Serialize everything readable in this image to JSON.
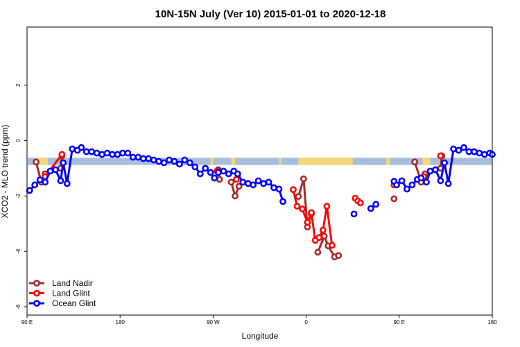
{
  "chart_data": {
    "type": "line",
    "title": "10N-15N July (Ver 10)   2015-01-01 to 2020-12-18",
    "xlabel": "Longitude",
    "ylabel": "XCO2 - MLO trend (ppm)",
    "xlim": [
      90,
      450
    ],
    "ylim": [
      -6.3,
      4.1
    ],
    "x_ticks": [
      {
        "value": 90,
        "label": "90 E"
      },
      {
        "value": 162,
        "label": "180"
      },
      {
        "value": 234,
        "label": "90 W"
      },
      {
        "value": 306,
        "label": "0"
      },
      {
        "value": 378,
        "label": "90 E"
      },
      {
        "value": 450,
        "label": "180"
      }
    ],
    "y_ticks": [
      {
        "value": 2,
        "label": "2"
      },
      {
        "value": 0,
        "label": "0"
      },
      {
        "value": -2,
        "label": "-2"
      },
      {
        "value": -4,
        "label": "-4"
      },
      {
        "value": -6,
        "label": "-6"
      }
    ],
    "legend_position": "bottom-left",
    "colors": {
      "land_nadir": "#a52a2a",
      "land_glint": "#ff0000",
      "ocean_glint": "#0000ff",
      "band": "#a9bedd",
      "land": "#f3d87a"
    },
    "series": [
      {
        "name": "Land Nadir",
        "color": "#a52a2a",
        "segments": [
          [
            [
              97,
              -0.77
            ],
            [
              101,
              -1.5
            ],
            [
              104,
              -1.2
            ]
          ],
          [
            [
              116,
              -1.0
            ],
            [
              117,
              -0.55
            ]
          ],
          [
            [
              238,
              -1.05
            ],
            [
              239,
              -1.4
            ]
          ],
          [
            [
              248,
              -1.5
            ],
            [
              251,
              -2.0
            ],
            [
              254,
              -1.65
            ]
          ],
          [
            [
              300,
              -2.02
            ],
            [
              304,
              -1.38
            ],
            [
              307,
              -3.12
            ],
            [
              310,
              -2.65
            ]
          ],
          [
            [
              315,
              -4.03
            ],
            [
              320,
              -3.45
            ],
            [
              323,
              -3.8
            ],
            [
              328,
              -4.2
            ],
            [
              331,
              -4.15
            ]
          ],
          [
            [
              374,
              -2.1
            ]
          ],
          [
            [
              390,
              -0.77
            ],
            [
              395,
              -1.5
            ],
            [
              398,
              -1.2
            ]
          ],
          [
            [
              410,
              -1.0
            ],
            [
              411,
              -0.55
            ]
          ]
        ]
      },
      {
        "name": "Land Glint",
        "color": "#ff0000",
        "segments": [
          [
            [
              104,
              -1.3
            ],
            [
              117,
              -0.5
            ]
          ],
          [
            [
              237,
              -1.1
            ]
          ],
          [
            [
              252,
              -1.4
            ]
          ],
          [
            [
              296,
              -1.77
            ],
            [
              299,
              -2.37
            ],
            [
              303,
              -2.47
            ],
            [
              307,
              -2.95
            ],
            [
              310,
              -2.6
            ],
            [
              313,
              -3.6
            ],
            [
              316,
              -3.5
            ],
            [
              319,
              -3.23
            ],
            [
              322,
              -2.37
            ],
            [
              326,
              -3.78
            ]
          ],
          [
            [
              344,
              -2.08
            ],
            [
              346,
              -2.18
            ],
            [
              348,
              -2.25
            ]
          ],
          [
            [
              374,
              -1.6
            ]
          ],
          [
            [
              397,
              -1.3
            ]
          ],
          [
            [
              410,
              -0.55
            ]
          ]
        ]
      },
      {
        "name": "Ocean Glint",
        "color": "#0000ff",
        "segments": [
          [
            [
              92,
              -1.8
            ],
            [
              96,
              -1.6
            ],
            [
              100,
              -1.42
            ],
            [
              104,
              -1.5
            ],
            [
              108,
              -1.1
            ],
            [
              112,
              -1.05
            ],
            [
              116,
              -1.45
            ],
            [
              118,
              -0.8
            ],
            [
              121,
              -1.55
            ],
            [
              125,
              -0.3
            ],
            [
              129,
              -0.35
            ],
            [
              132,
              -0.25
            ],
            [
              136,
              -0.4
            ],
            [
              140,
              -0.4
            ],
            [
              144,
              -0.45
            ],
            [
              148,
              -0.5
            ],
            [
              152,
              -0.45
            ],
            [
              156,
              -0.5
            ],
            [
              160,
              -0.5
            ],
            [
              164,
              -0.45
            ],
            [
              168,
              -0.45
            ],
            [
              172,
              -0.6
            ],
            [
              176,
              -0.6
            ],
            [
              180,
              -0.65
            ],
            [
              184,
              -0.65
            ],
            [
              188,
              -0.7
            ],
            [
              192,
              -0.75
            ],
            [
              196,
              -0.8
            ],
            [
              200,
              -0.7
            ],
            [
              204,
              -0.75
            ],
            [
              208,
              -0.85
            ],
            [
              212,
              -0.7
            ],
            [
              216,
              -0.8
            ],
            [
              220,
              -0.95
            ],
            [
              224,
              -1.2
            ],
            [
              228,
              -1.0
            ],
            [
              232,
              -1.15
            ],
            [
              235,
              -1.35
            ],
            [
              238,
              -1.15
            ],
            [
              242,
              -1.1
            ],
            [
              246,
              -1.2
            ],
            [
              250,
              -1.1
            ],
            [
              253,
              -1.2
            ],
            [
              257,
              -1.5
            ],
            [
              261,
              -1.55
            ],
            [
              265,
              -1.6
            ],
            [
              269,
              -1.45
            ],
            [
              273,
              -1.55
            ],
            [
              277,
              -1.5
            ],
            [
              281,
              -1.7
            ],
            [
              285,
              -1.75
            ],
            [
              288,
              -2.2
            ]
          ],
          [
            [
              343,
              -2.65
            ]
          ],
          [
            [
              356,
              -2.45
            ],
            [
              360,
              -2.3
            ]
          ],
          [
            [
              374,
              -1.47
            ],
            [
              376,
              -1.6
            ],
            [
              380,
              -1.45
            ],
            [
              384,
              -1.75
            ],
            [
              388,
              -1.6
            ],
            [
              392,
              -1.4
            ],
            [
              395,
              -1.35
            ],
            [
              399,
              -1.5
            ],
            [
              402,
              -1.1
            ],
            [
              406,
              -1.05
            ],
            [
              410,
              -1.45
            ],
            [
              413,
              -0.8
            ],
            [
              416,
              -1.55
            ],
            [
              420,
              -0.3
            ],
            [
              424,
              -0.35
            ],
            [
              428,
              -0.25
            ],
            [
              432,
              -0.4
            ],
            [
              436,
              -0.4
            ],
            [
              440,
              -0.45
            ],
            [
              444,
              -0.5
            ],
            [
              448,
              -0.45
            ],
            [
              450,
              -0.5
            ]
          ]
        ]
      }
    ]
  }
}
